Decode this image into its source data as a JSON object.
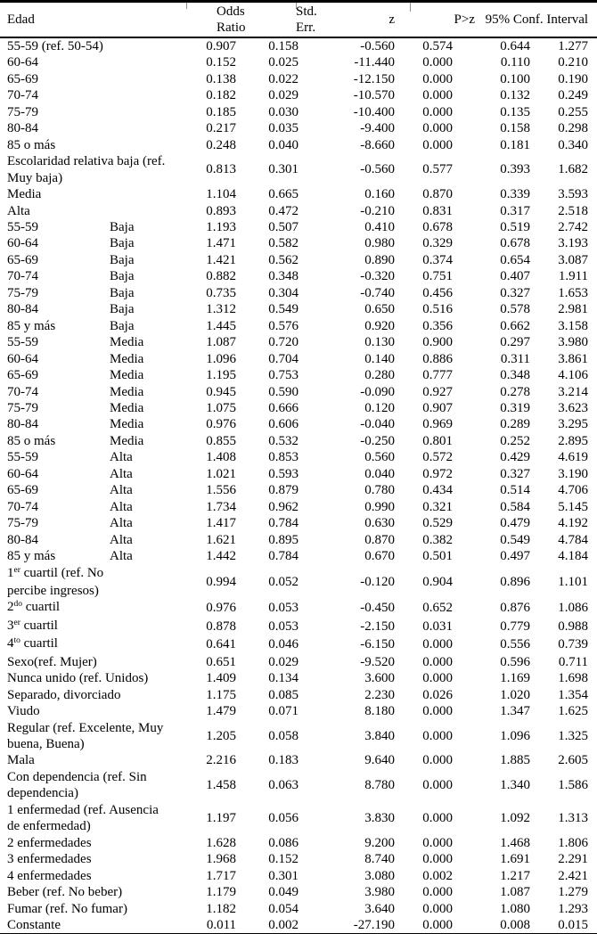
{
  "table": {
    "header": {
      "col_label": "Edad",
      "col_odds": "Odds\nRatio",
      "col_se": "Std.\nErr.",
      "col_z": "z",
      "col_p": "P>z",
      "col_ci": "95% Conf. Interval"
    },
    "rows": [
      {
        "label": "55-59 (ref. 50-54)",
        "v": [
          "0.907",
          "0.158",
          "-0.560",
          "0.574",
          "0.644",
          "1.277"
        ]
      },
      {
        "label": "60-64",
        "v": [
          "0.152",
          "0.025",
          "-11.440",
          "0.000",
          "0.110",
          "0.210"
        ]
      },
      {
        "label": "65-69",
        "v": [
          "0.138",
          "0.022",
          "-12.150",
          "0.000",
          "0.100",
          "0.190"
        ]
      },
      {
        "label": "70-74",
        "v": [
          "0.182",
          "0.029",
          "-10.570",
          "0.000",
          "0.132",
          "0.249"
        ]
      },
      {
        "label": "75-79",
        "v": [
          "0.185",
          "0.030",
          "-10.400",
          "0.000",
          "0.135",
          "0.255"
        ]
      },
      {
        "label": "80-84",
        "v": [
          "0.217",
          "0.035",
          "-9.400",
          "0.000",
          "0.158",
          "0.298"
        ]
      },
      {
        "label": "85 o más",
        "v": [
          "0.248",
          "0.040",
          "-8.660",
          "0.000",
          "0.181",
          "0.340"
        ]
      },
      {
        "label": "Escolaridad relativa baja (ref.\nMuy baja)",
        "v": [
          "0.813",
          "0.301",
          "-0.560",
          "0.577",
          "0.393",
          "1.682"
        ]
      },
      {
        "label": "Media",
        "v": [
          "1.104",
          "0.665",
          "0.160",
          "0.870",
          "0.339",
          "3.593"
        ]
      },
      {
        "label": "Alta",
        "v": [
          "0.893",
          "0.472",
          "-0.210",
          "0.831",
          "0.317",
          "2.518"
        ]
      },
      {
        "label": "55-59",
        "sub": "Baja",
        "v": [
          "1.193",
          "0.507",
          "0.410",
          "0.678",
          "0.519",
          "2.742"
        ]
      },
      {
        "label": "60-64",
        "sub": "Baja",
        "v": [
          "1.471",
          "0.582",
          "0.980",
          "0.329",
          "0.678",
          "3.193"
        ]
      },
      {
        "label": "65-69",
        "sub": "Baja",
        "v": [
          "1.421",
          "0.562",
          "0.890",
          "0.374",
          "0.654",
          "3.087"
        ]
      },
      {
        "label": "70-74",
        "sub": "Baja",
        "v": [
          "0.882",
          "0.348",
          "-0.320",
          "0.751",
          "0.407",
          "1.911"
        ]
      },
      {
        "label": "75-79",
        "sub": "Baja",
        "v": [
          "0.735",
          "0.304",
          "-0.740",
          "0.456",
          "0.327",
          "1.653"
        ]
      },
      {
        "label": "80-84",
        "sub": "Baja",
        "v": [
          "1.312",
          "0.549",
          "0.650",
          "0.516",
          "0.578",
          "2.981"
        ]
      },
      {
        "label": "85 y más",
        "sub": "Baja",
        "v": [
          "1.445",
          "0.576",
          "0.920",
          "0.356",
          "0.662",
          "3.158"
        ]
      },
      {
        "label": "55-59",
        "sub": "Media",
        "v": [
          "1.087",
          "0.720",
          "0.130",
          "0.900",
          "0.297",
          "3.980"
        ]
      },
      {
        "label": "60-64",
        "sub": "Media",
        "v": [
          "1.096",
          "0.704",
          "0.140",
          "0.886",
          "0.311",
          "3.861"
        ]
      },
      {
        "label": "65-69",
        "sub": "Media",
        "v": [
          "1.195",
          "0.753",
          "0.280",
          "0.777",
          "0.348",
          "4.106"
        ]
      },
      {
        "label": "70-74",
        "sub": "Media",
        "v": [
          "0.945",
          "0.590",
          "-0.090",
          "0.927",
          "0.278",
          "3.214"
        ]
      },
      {
        "label": "75-79",
        "sub": "Media",
        "v": [
          "1.075",
          "0.666",
          "0.120",
          "0.907",
          "0.319",
          "3.623"
        ]
      },
      {
        "label": "80-84",
        "sub": "Media",
        "v": [
          "0.976",
          "0.606",
          "-0.040",
          "0.969",
          "0.289",
          "3.295"
        ]
      },
      {
        "label": "85 o más",
        "sub": "Media",
        "v": [
          "0.855",
          "0.532",
          "-0.250",
          "0.801",
          "0.252",
          "2.895"
        ]
      },
      {
        "label": "55-59",
        "sub": "Alta",
        "v": [
          "1.408",
          "0.853",
          "0.560",
          "0.572",
          "0.429",
          "4.619"
        ]
      },
      {
        "label": "60-64",
        "sub": "Alta",
        "v": [
          "1.021",
          "0.593",
          "0.040",
          "0.972",
          "0.327",
          "3.190"
        ]
      },
      {
        "label": "65-69",
        "sub": "Alta",
        "v": [
          "1.556",
          "0.879",
          "0.780",
          "0.434",
          "0.514",
          "4.706"
        ]
      },
      {
        "label": "70-74",
        "sub": "Alta",
        "v": [
          "1.734",
          "0.962",
          "0.990",
          "0.321",
          "0.584",
          "5.145"
        ]
      },
      {
        "label": "75-79",
        "sub": "Alta",
        "v": [
          "1.417",
          "0.784",
          "0.630",
          "0.529",
          "0.479",
          "4.192"
        ]
      },
      {
        "label": "80-84",
        "sub": "Alta",
        "v": [
          "1.621",
          "0.895",
          "0.870",
          "0.382",
          "0.549",
          "4.784"
        ]
      },
      {
        "label": "85 y más",
        "sub": "Alta",
        "v": [
          "1.442",
          "0.784",
          "0.670",
          "0.501",
          "0.497",
          "4.184"
        ]
      },
      {
        "sup_pre": "1",
        "sup": "er",
        "label": " cuartil (ref. No\npercibe ingresos)",
        "v": [
          "0.994",
          "0.052",
          "-0.120",
          "0.904",
          "0.896",
          "1.101"
        ]
      },
      {
        "sup_pre": "2",
        "sup": "do",
        "label": " cuartil",
        "v": [
          "0.976",
          "0.053",
          "-0.450",
          "0.652",
          "0.876",
          "1.086"
        ]
      },
      {
        "sup_pre": "3",
        "sup": "er",
        "label": " cuartil",
        "v": [
          "0.878",
          "0.053",
          "-2.150",
          "0.031",
          "0.779",
          "0.988"
        ]
      },
      {
        "sup_pre": "4",
        "sup": "to",
        "label": " cuartil",
        "v": [
          "0.641",
          "0.046",
          "-6.150",
          "0.000",
          "0.556",
          "0.739"
        ]
      },
      {
        "label": "Sexo(ref. Mujer)",
        "v": [
          "0.651",
          "0.029",
          "-9.520",
          "0.000",
          "0.596",
          "0.711"
        ]
      },
      {
        "label": "Nunca unido (ref. Unidos)",
        "v": [
          "1.409",
          "0.134",
          "3.600",
          "0.000",
          "1.169",
          "1.698"
        ]
      },
      {
        "label": "Separado, divorciado",
        "v": [
          "1.175",
          "0.085",
          "2.230",
          "0.026",
          "1.020",
          "1.354"
        ]
      },
      {
        "label": "Viudo",
        "v": [
          "1.479",
          "0.071",
          "8.180",
          "0.000",
          "1.347",
          "1.625"
        ]
      },
      {
        "label": "Regular (ref. Excelente, Muy\nbuena, Buena)",
        "v": [
          "1.205",
          "0.058",
          "3.840",
          "0.000",
          "1.096",
          "1.325"
        ]
      },
      {
        "label": "Mala",
        "v": [
          "2.216",
          "0.183",
          "9.640",
          "0.000",
          "1.885",
          "2.605"
        ]
      },
      {
        "label": "Con dependencia (ref. Sin\ndependencia)",
        "v": [
          "1.458",
          "0.063",
          "8.780",
          "0.000",
          "1.340",
          "1.586"
        ]
      },
      {
        "label": "1 enfermedad (ref. Ausencia\nde enfermedad)",
        "v": [
          "1.197",
          "0.056",
          "3.830",
          "0.000",
          "1.092",
          "1.313"
        ]
      },
      {
        "label": "2 enfermedades",
        "v": [
          "1.628",
          "0.086",
          "9.200",
          "0.000",
          "1.468",
          "1.806"
        ]
      },
      {
        "label": "3 enfermedades",
        "v": [
          "1.968",
          "0.152",
          "8.740",
          "0.000",
          "1.691",
          "2.291"
        ]
      },
      {
        "label": "4 enfermedades",
        "v": [
          "1.717",
          "0.301",
          "3.080",
          "0.002",
          "1.217",
          "2.421"
        ]
      },
      {
        "label": "Beber (ref. No beber)",
        "v": [
          "1.179",
          "0.049",
          "3.980",
          "0.000",
          "1.087",
          "1.279"
        ]
      },
      {
        "label": "Fumar (ref. No fumar)",
        "v": [
          "1.182",
          "0.054",
          "3.640",
          "0.000",
          "1.080",
          "1.293"
        ]
      },
      {
        "label": "Constante",
        "v": [
          "0.011",
          "0.002",
          "-27.190",
          "0.000",
          "0.008",
          "0.015"
        ]
      }
    ]
  },
  "colors": {
    "text": "#000000",
    "rule": "#000000",
    "cell_border_tick": "#8f8f8f",
    "background": "#ffffff"
  }
}
